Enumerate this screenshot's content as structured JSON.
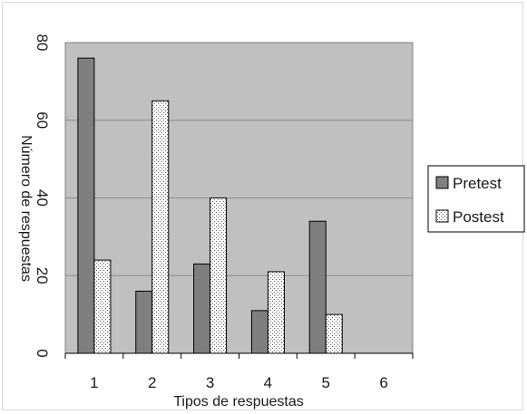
{
  "chart_data": {
    "type": "bar",
    "title": "",
    "xlabel": "Tipos de respuestas",
    "ylabel": "Número de respuestas",
    "categories": [
      "1",
      "2",
      "3",
      "4",
      "5",
      "6"
    ],
    "ylim": [
      0,
      80
    ],
    "yticks": [
      0,
      20,
      40,
      60,
      80
    ],
    "ytick_labels": [
      "0",
      "20",
      "40",
      "60",
      "80"
    ],
    "grid": true,
    "legend_position": "right",
    "plot_background": "#c0c0c0",
    "series": [
      {
        "name": "Pretest",
        "values": [
          76,
          16,
          23,
          11,
          34,
          null
        ],
        "color": "#7f7f7f",
        "pattern": "solid"
      },
      {
        "name": "Postest",
        "values": [
          24,
          65,
          40,
          21,
          10,
          null
        ],
        "color": "#ffffff",
        "pattern": "dotted"
      }
    ]
  }
}
